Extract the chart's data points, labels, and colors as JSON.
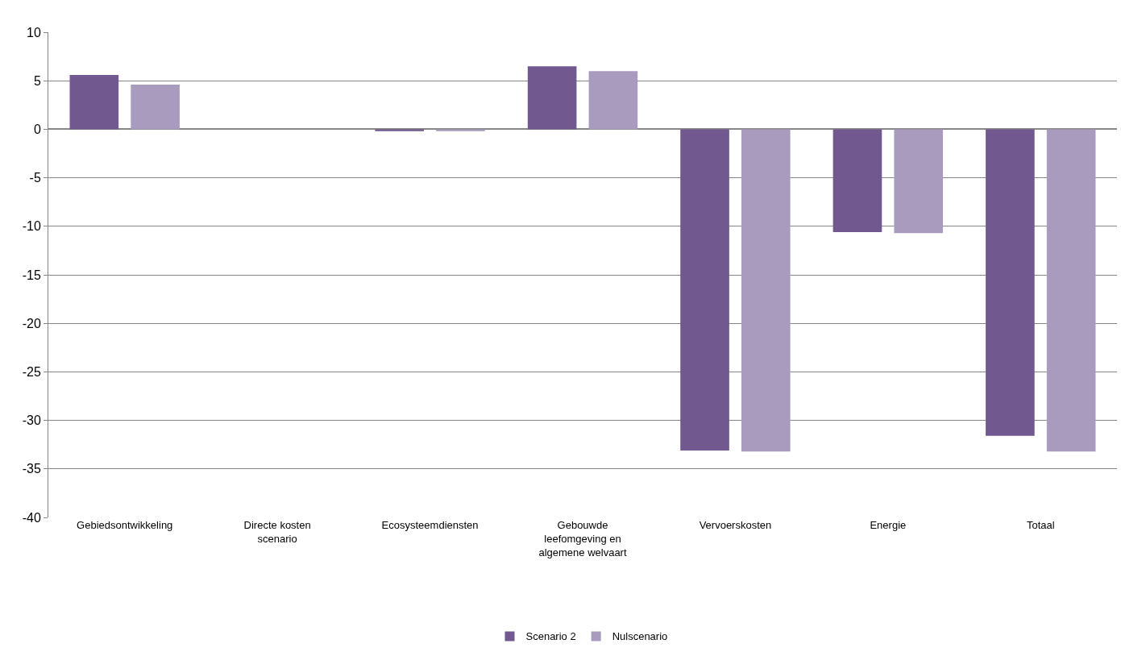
{
  "chart_data": {
    "type": "bar",
    "categories": [
      "Gebiedsontwikkeling",
      "Directe kosten scenario",
      "Ecosysteemdiensten",
      "Gebouwde leefomgeving en algemene welvaart",
      "Vervoerskosten",
      "Energie",
      "Totaal"
    ],
    "series": [
      {
        "name": "Scenario 2",
        "color": "#71588f",
        "values": [
          5.6,
          0,
          -0.2,
          6.5,
          -33.1,
          -10.6,
          -31.6
        ]
      },
      {
        "name": "Nulscenario",
        "color": "#a99bbd",
        "values": [
          4.6,
          0,
          -0.2,
          6.0,
          -33.2,
          -10.7,
          -33.2
        ]
      }
    ],
    "ylim": [
      -40,
      10
    ],
    "yticks": [
      -40,
      -35,
      -30,
      -25,
      -20,
      -15,
      -10,
      -5,
      0,
      5,
      10
    ],
    "grid": "y",
    "legend": "bottom"
  }
}
